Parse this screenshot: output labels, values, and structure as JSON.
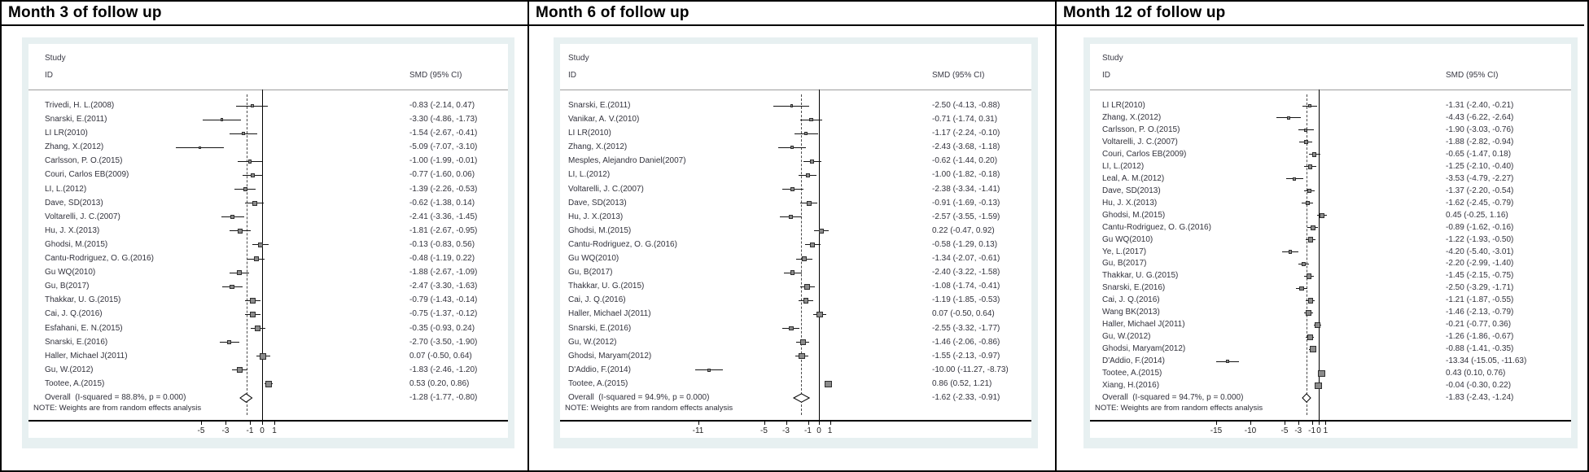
{
  "figure_note": "Three forest plots of SMD (95% CI) by follow-up month",
  "chart_data": [
    {
      "type": "forest",
      "title": "Month 3 of follow up",
      "columns": {
        "study": "Study",
        "id": "ID",
        "smd": "SMD (95% CI)"
      },
      "note": "NOTE: Weights are from random effects analysis",
      "x_ticks": [
        -5,
        -3,
        -1,
        0,
        1
      ],
      "x_tick_labels": [
        "-5",
        "-3",
        "-1",
        "0",
        "1"
      ],
      "zero_line": 0,
      "studies": [
        {
          "label": "Trivedi, H. L.(2008)",
          "smd": -0.83,
          "lo": -2.14,
          "hi": 0.47,
          "ci_text": "-0.83 (-2.14, 0.47)"
        },
        {
          "label": "Snarski, E.(2011)",
          "smd": -3.3,
          "lo": -4.86,
          "hi": -1.73,
          "ci_text": "-3.30 (-4.86, -1.73)"
        },
        {
          "label": "LI LR(2010)",
          "smd": -1.54,
          "lo": -2.67,
          "hi": -0.41,
          "ci_text": "-1.54 (-2.67, -0.41)"
        },
        {
          "label": "Zhang, X.(2012)",
          "smd": -5.09,
          "lo": -7.07,
          "hi": -3.1,
          "ci_text": "-5.09 (-7.07, -3.10)"
        },
        {
          "label": "Carlsson, P. O.(2015)",
          "smd": -1.0,
          "lo": -1.99,
          "hi": -0.01,
          "ci_text": "-1.00 (-1.99, -0.01)"
        },
        {
          "label": "Couri, Carlos EB(2009)",
          "smd": -0.77,
          "lo": -1.6,
          "hi": 0.06,
          "ci_text": "-0.77 (-1.60, 0.06)"
        },
        {
          "label": "LI, L.(2012)",
          "smd": -1.39,
          "lo": -2.26,
          "hi": -0.53,
          "ci_text": "-1.39 (-2.26, -0.53)"
        },
        {
          "label": "Dave, SD(2013)",
          "smd": -0.62,
          "lo": -1.38,
          "hi": 0.14,
          "ci_text": "-0.62 (-1.38, 0.14)"
        },
        {
          "label": "Voltarelli, J. C.(2007)",
          "smd": -2.41,
          "lo": -3.36,
          "hi": -1.45,
          "ci_text": "-2.41 (-3.36, -1.45)"
        },
        {
          "label": "Hu, J. X.(2013)",
          "smd": -1.81,
          "lo": -2.67,
          "hi": -0.95,
          "ci_text": "-1.81 (-2.67, -0.95)"
        },
        {
          "label": "Ghodsi, M.(2015)",
          "smd": -0.13,
          "lo": -0.83,
          "hi": 0.56,
          "ci_text": "-0.13 (-0.83, 0.56)"
        },
        {
          "label": "Cantu-Rodriguez, O. G.(2016)",
          "smd": -0.48,
          "lo": -1.19,
          "hi": 0.22,
          "ci_text": "-0.48 (-1.19, 0.22)"
        },
        {
          "label": "Gu WQ(2010)",
          "smd": -1.88,
          "lo": -2.67,
          "hi": -1.09,
          "ci_text": "-1.88 (-2.67, -1.09)"
        },
        {
          "label": "Gu, B(2017)",
          "smd": -2.47,
          "lo": -3.3,
          "hi": -1.63,
          "ci_text": "-2.47 (-3.30, -1.63)"
        },
        {
          "label": "Thakkar, U. G.(2015)",
          "smd": -0.79,
          "lo": -1.43,
          "hi": -0.14,
          "ci_text": "-0.79 (-1.43, -0.14)"
        },
        {
          "label": "Cai, J. Q.(2016)",
          "smd": -0.75,
          "lo": -1.37,
          "hi": -0.12,
          "ci_text": "-0.75 (-1.37, -0.12)"
        },
        {
          "label": "Esfahani, E. N.(2015)",
          "smd": -0.35,
          "lo": -0.93,
          "hi": 0.24,
          "ci_text": "-0.35 (-0.93, 0.24)"
        },
        {
          "label": "Snarski, E.(2016)",
          "smd": -2.7,
          "lo": -3.5,
          "hi": -1.9,
          "ci_text": "-2.70 (-3.50, -1.90)"
        },
        {
          "label": "Haller, Michael J(2011)",
          "smd": 0.07,
          "lo": -0.5,
          "hi": 0.64,
          "ci_text": "0.07 (-0.50, 0.64)"
        },
        {
          "label": "Gu, W.(2012)",
          "smd": -1.83,
          "lo": -2.46,
          "hi": -1.2,
          "ci_text": "-1.83 (-2.46, -1.20)"
        },
        {
          "label": "Tootee, A.(2015)",
          "smd": 0.53,
          "lo": 0.2,
          "hi": 0.86,
          "ci_text": "0.53 (0.20, 0.86)"
        }
      ],
      "overall": {
        "label": "Overall  (I-squared = 88.8%, p = 0.000)",
        "smd": -1.28,
        "lo": -1.77,
        "hi": -0.8,
        "ci_text": "-1.28 (-1.77, -0.80)"
      }
    },
    {
      "type": "forest",
      "title": "Month 6 of follow up",
      "columns": {
        "study": "Study",
        "id": "ID",
        "smd": "SMD (95% CI)"
      },
      "note": "NOTE: Weights are from random effects analysis",
      "x_ticks": [
        -11,
        -5,
        -3,
        -1,
        0,
        1
      ],
      "x_tick_labels": [
        "-11",
        "-5",
        "-3",
        "-1",
        "0",
        "1"
      ],
      "zero_line": 0,
      "studies": [
        {
          "label": "Snarski, E.(2011)",
          "smd": -2.5,
          "lo": -4.13,
          "hi": -0.88,
          "ci_text": "-2.50 (-4.13, -0.88)"
        },
        {
          "label": "Vanikar, A. V.(2010)",
          "smd": -0.71,
          "lo": -1.74,
          "hi": 0.31,
          "ci_text": "-0.71 (-1.74, 0.31)"
        },
        {
          "label": "LI LR(2010)",
          "smd": -1.17,
          "lo": -2.24,
          "hi": -0.1,
          "ci_text": "-1.17 (-2.24, -0.10)"
        },
        {
          "label": "Zhang, X.(2012)",
          "smd": -2.43,
          "lo": -3.68,
          "hi": -1.18,
          "ci_text": "-2.43 (-3.68, -1.18)"
        },
        {
          "label": "Mesples, Alejandro Daniel(2007)",
          "smd": -0.62,
          "lo": -1.44,
          "hi": 0.2,
          "ci_text": "-0.62 (-1.44, 0.20)"
        },
        {
          "label": "LI, L.(2012)",
          "smd": -1.0,
          "lo": -1.82,
          "hi": -0.18,
          "ci_text": "-1.00 (-1.82, -0.18)"
        },
        {
          "label": "Voltarelli, J. C.(2007)",
          "smd": -2.38,
          "lo": -3.34,
          "hi": -1.41,
          "ci_text": "-2.38 (-3.34, -1.41)"
        },
        {
          "label": "Dave, SD(2013)",
          "smd": -0.91,
          "lo": -1.69,
          "hi": -0.13,
          "ci_text": "-0.91 (-1.69, -0.13)"
        },
        {
          "label": "Hu, J. X.(2013)",
          "smd": -2.57,
          "lo": -3.55,
          "hi": -1.59,
          "ci_text": "-2.57 (-3.55, -1.59)"
        },
        {
          "label": "Ghodsi, M.(2015)",
          "smd": 0.22,
          "lo": -0.47,
          "hi": 0.92,
          "ci_text": "0.22 (-0.47, 0.92)"
        },
        {
          "label": "Cantu-Rodriguez, O. G.(2016)",
          "smd": -0.58,
          "lo": -1.29,
          "hi": 0.13,
          "ci_text": "-0.58 (-1.29, 0.13)"
        },
        {
          "label": "Gu WQ(2010)",
          "smd": -1.34,
          "lo": -2.07,
          "hi": -0.61,
          "ci_text": "-1.34 (-2.07, -0.61)"
        },
        {
          "label": "Gu, B(2017)",
          "smd": -2.4,
          "lo": -3.22,
          "hi": -1.58,
          "ci_text": "-2.40 (-3.22, -1.58)"
        },
        {
          "label": "Thakkar, U. G.(2015)",
          "smd": -1.08,
          "lo": -1.74,
          "hi": -0.41,
          "ci_text": "-1.08 (-1.74, -0.41)"
        },
        {
          "label": "Cai, J. Q.(2016)",
          "smd": -1.19,
          "lo": -1.85,
          "hi": -0.53,
          "ci_text": "-1.19 (-1.85, -0.53)"
        },
        {
          "label": "Haller, Michael J(2011)",
          "smd": 0.07,
          "lo": -0.5,
          "hi": 0.64,
          "ci_text": "0.07 (-0.50, 0.64)"
        },
        {
          "label": "Snarski, E.(2016)",
          "smd": -2.55,
          "lo": -3.32,
          "hi": -1.77,
          "ci_text": "-2.55 (-3.32, -1.77)"
        },
        {
          "label": "Gu, W.(2012)",
          "smd": -1.46,
          "lo": -2.06,
          "hi": -0.86,
          "ci_text": "-1.46 (-2.06, -0.86)"
        },
        {
          "label": "Ghodsi, Maryam(2012)",
          "smd": -1.55,
          "lo": -2.13,
          "hi": -0.97,
          "ci_text": "-1.55 (-2.13, -0.97)"
        },
        {
          "label": "D'Addio, F.(2014)",
          "smd": -10.0,
          "lo": -11.27,
          "hi": -8.73,
          "ci_text": "-10.00 (-11.27, -8.73)"
        },
        {
          "label": "Tootee, A.(2015)",
          "smd": 0.86,
          "lo": 0.52,
          "hi": 1.21,
          "ci_text": "0.86 (0.52, 1.21)"
        }
      ],
      "overall": {
        "label": "Overall  (I-squared = 94.9%, p = 0.000)",
        "smd": -1.62,
        "lo": -2.33,
        "hi": -0.91,
        "ci_text": "-1.62 (-2.33, -0.91)"
      }
    },
    {
      "type": "forest",
      "title": "Month 12 of follow up",
      "columns": {
        "study": "Study",
        "id": "ID",
        "smd": "SMD (95% CI)"
      },
      "note": "NOTE: Weights are from random effects analysis",
      "x_ticks": [
        -15,
        -10,
        -5,
        -3,
        -1,
        0,
        1
      ],
      "x_tick_labels": [
        "-15",
        "-10",
        "-5",
        "-3",
        "-1",
        "0",
        "1"
      ],
      "zero_line": 0,
      "studies": [
        {
          "label": "LI LR(2010)",
          "smd": -1.31,
          "lo": -2.4,
          "hi": -0.21,
          "ci_text": "-1.31 (-2.40, -0.21)"
        },
        {
          "label": "Zhang, X.(2012)",
          "smd": -4.43,
          "lo": -6.22,
          "hi": -2.64,
          "ci_text": "-4.43 (-6.22, -2.64)"
        },
        {
          "label": "Carlsson, P. O.(2015)",
          "smd": -1.9,
          "lo": -3.03,
          "hi": -0.76,
          "ci_text": "-1.90 (-3.03, -0.76)"
        },
        {
          "label": "Voltarelli, J. C.(2007)",
          "smd": -1.88,
          "lo": -2.82,
          "hi": -0.94,
          "ci_text": "-1.88 (-2.82, -0.94)"
        },
        {
          "label": "Couri, Carlos EB(2009)",
          "smd": -0.65,
          "lo": -1.47,
          "hi": 0.18,
          "ci_text": "-0.65 (-1.47, 0.18)"
        },
        {
          "label": "LI, L.(2012)",
          "smd": -1.25,
          "lo": -2.1,
          "hi": -0.4,
          "ci_text": "-1.25 (-2.10, -0.40)"
        },
        {
          "label": "Leal, A. M.(2012)",
          "smd": -3.53,
          "lo": -4.79,
          "hi": -2.27,
          "ci_text": "-3.53 (-4.79, -2.27)"
        },
        {
          "label": "Dave, SD(2013)",
          "smd": -1.37,
          "lo": -2.2,
          "hi": -0.54,
          "ci_text": "-1.37 (-2.20, -0.54)"
        },
        {
          "label": "Hu, J. X.(2013)",
          "smd": -1.62,
          "lo": -2.45,
          "hi": -0.79,
          "ci_text": "-1.62 (-2.45, -0.79)"
        },
        {
          "label": "Ghodsi, M.(2015)",
          "smd": 0.45,
          "lo": -0.25,
          "hi": 1.16,
          "ci_text": "0.45 (-0.25, 1.16)"
        },
        {
          "label": "Cantu-Rodriguez, O. G.(2016)",
          "smd": -0.89,
          "lo": -1.62,
          "hi": -0.16,
          "ci_text": "-0.89 (-1.62, -0.16)"
        },
        {
          "label": "Gu WQ(2010)",
          "smd": -1.22,
          "lo": -1.93,
          "hi": -0.5,
          "ci_text": "-1.22 (-1.93, -0.50)"
        },
        {
          "label": "Ye, L.(2017)",
          "smd": -4.2,
          "lo": -5.4,
          "hi": -3.01,
          "ci_text": "-4.20 (-5.40, -3.01)"
        },
        {
          "label": "Gu, B(2017)",
          "smd": -2.2,
          "lo": -2.99,
          "hi": -1.4,
          "ci_text": "-2.20 (-2.99, -1.40)"
        },
        {
          "label": "Thakkar, U. G.(2015)",
          "smd": -1.45,
          "lo": -2.15,
          "hi": -0.75,
          "ci_text": "-1.45 (-2.15, -0.75)"
        },
        {
          "label": "Snarski, E.(2016)",
          "smd": -2.5,
          "lo": -3.29,
          "hi": -1.71,
          "ci_text": "-2.50 (-3.29, -1.71)"
        },
        {
          "label": "Cai, J. Q.(2016)",
          "smd": -1.21,
          "lo": -1.87,
          "hi": -0.55,
          "ci_text": "-1.21 (-1.87, -0.55)"
        },
        {
          "label": "Wang BK(2013)",
          "smd": -1.46,
          "lo": -2.13,
          "hi": -0.79,
          "ci_text": "-1.46 (-2.13, -0.79)"
        },
        {
          "label": "Haller, Michael J(2011)",
          "smd": -0.21,
          "lo": -0.77,
          "hi": 0.36,
          "ci_text": "-0.21 (-0.77, 0.36)"
        },
        {
          "label": "Gu, W.(2012)",
          "smd": -1.26,
          "lo": -1.86,
          "hi": -0.67,
          "ci_text": "-1.26 (-1.86, -0.67)"
        },
        {
          "label": "Ghodsi, Maryam(2012)",
          "smd": -0.88,
          "lo": -1.41,
          "hi": -0.35,
          "ci_text": "-0.88 (-1.41, -0.35)"
        },
        {
          "label": "D'Addio, F.(2014)",
          "smd": -13.34,
          "lo": -15.05,
          "hi": -11.63,
          "ci_text": "-13.34 (-15.05, -11.63)"
        },
        {
          "label": "Tootee, A.(2015)",
          "smd": 0.43,
          "lo": 0.1,
          "hi": 0.76,
          "ci_text": "0.43 (0.10, 0.76)"
        },
        {
          "label": "Xiang, H.(2016)",
          "smd": -0.04,
          "lo": -0.3,
          "hi": 0.22,
          "ci_text": "-0.04 (-0.30, 0.22)"
        }
      ],
      "overall": {
        "label": "Overall  (I-squared = 94.7%, p = 0.000)",
        "smd": -1.83,
        "lo": -2.43,
        "hi": -1.24,
        "ci_text": "-1.83 (-2.43, -1.24)"
      }
    }
  ]
}
